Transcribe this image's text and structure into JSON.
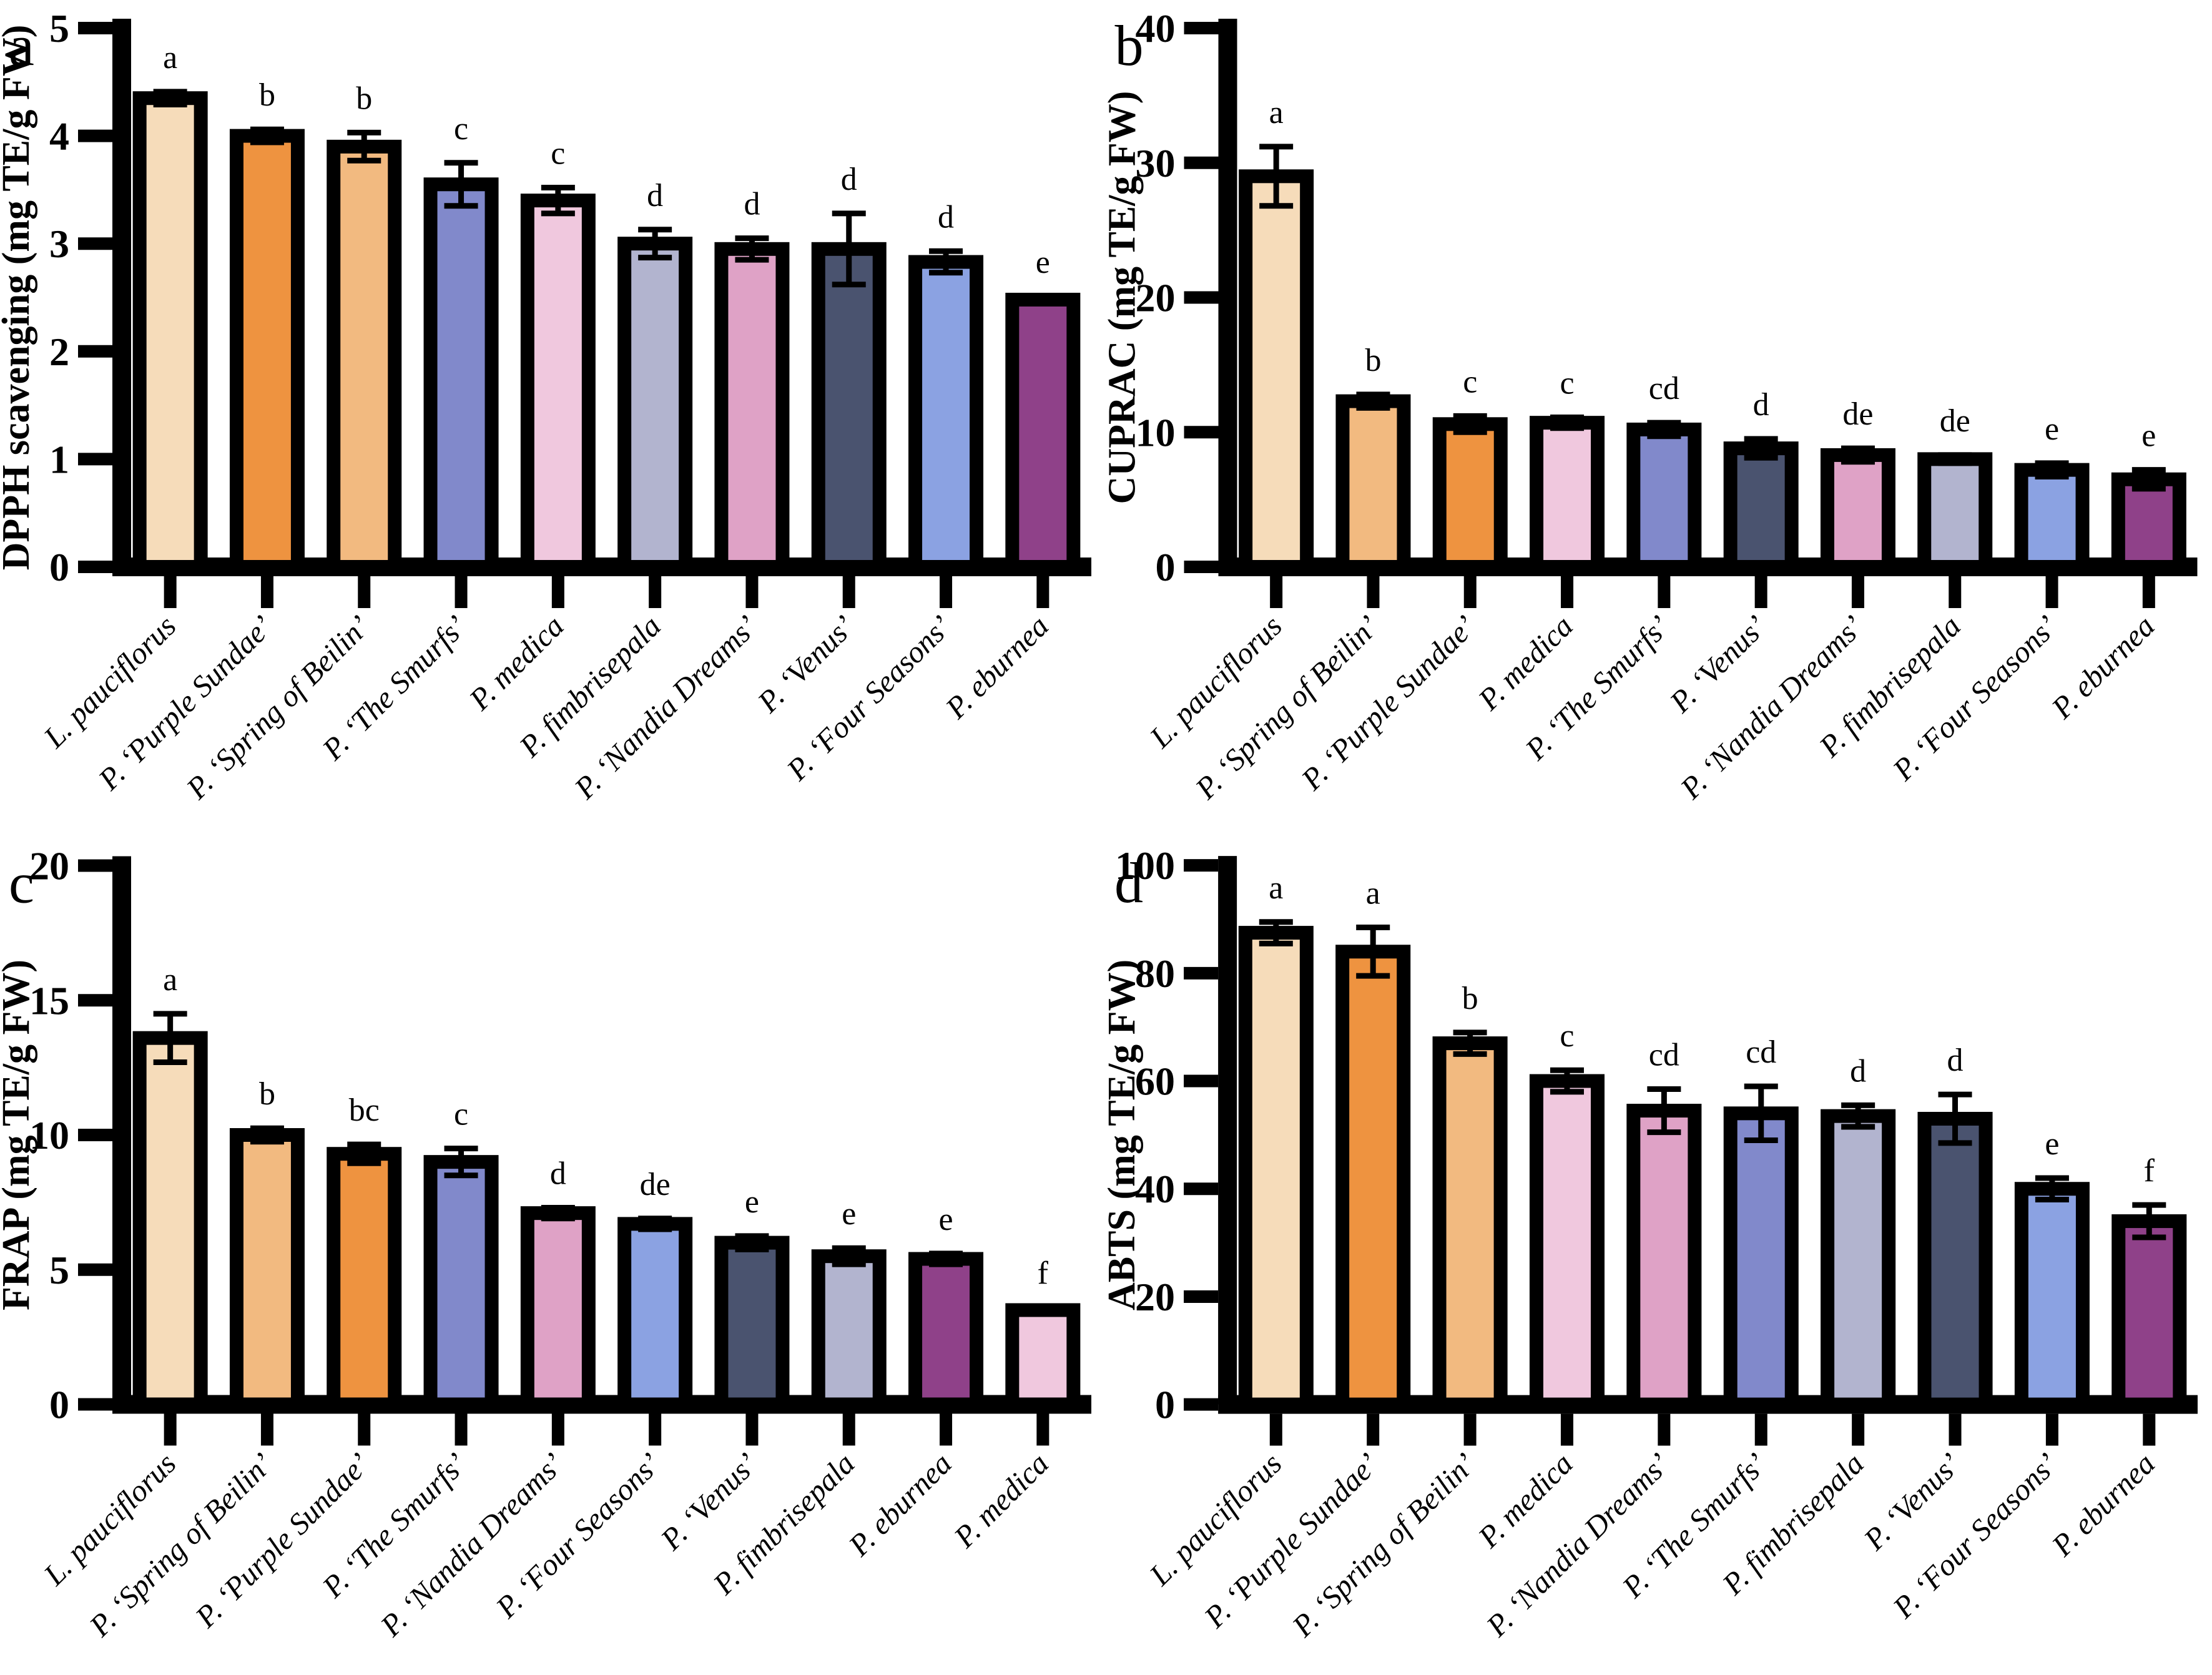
{
  "figure": {
    "background": "#FFFFFF",
    "text_color": "#000000",
    "axis_color": "#000000",
    "species_colors": {
      "L. pauciflorus": "#F6DCBA",
      "P. ‘Purple Sundae’": "#EE9340",
      "P. ‘Spring of Beilin’": "#F2BA80",
      "P. ‘The Smurfs’": "#8189CB",
      "P. medica": "#F0C8DE",
      "P. fimbrisepala": "#B2B4CF",
      "P. ‘Nandia Dreams’": "#DFA2C6",
      "P. ‘Venus’": "#4A536F",
      "P. ‘Four Seasons’": "#8BA2E2",
      "P. eburnea": "#8F4189"
    }
  },
  "chart_data": [
    {
      "type": "bar",
      "panel_letter": "a",
      "title": "",
      "xlabel": "",
      "ylabel": "DPPH scavenging (mg TE/g FW)",
      "ylim": [
        0,
        5
      ],
      "yticks": [
        0,
        1,
        2,
        3,
        4,
        5
      ],
      "grid": false,
      "legend": "none",
      "categories": [
        "L. pauciflorus",
        "P. ‘Purple Sundae’",
        "P. ‘Spring of Beilin’",
        "P. ‘The Smurfs’",
        "P. medica",
        "P. fimbrisepala",
        "P. ‘Nandia Dreams’",
        "P. ‘Venus’",
        "P. ‘Four Seasons’",
        "P. eburnea"
      ],
      "values": [
        4.35,
        4.0,
        3.9,
        3.55,
        3.4,
        3.0,
        2.95,
        2.95,
        2.83,
        2.48
      ],
      "errors": [
        0.06,
        0.06,
        0.13,
        0.2,
        0.12,
        0.13,
        0.1,
        0.33,
        0.1,
        0.03
      ],
      "sig_letters": [
        "a",
        "b",
        "b",
        "c",
        "c",
        "d",
        "d",
        "d",
        "d",
        "e"
      ]
    },
    {
      "type": "bar",
      "panel_letter": "b",
      "title": "",
      "xlabel": "",
      "ylabel": "CUPRAC (mg TE/g FW)",
      "ylim": [
        0,
        40
      ],
      "yticks": [
        0,
        10,
        20,
        30,
        40
      ],
      "grid": false,
      "legend": "none",
      "categories": [
        "L. pauciflorus",
        "P. ‘Spring of Beilin’",
        "P. ‘Purple Sundae’",
        "P. medica",
        "P. ‘The Smurfs’",
        "P. ‘Venus’",
        "P. ‘Nandia Dreams’",
        "P. fimbrisepala",
        "P. ‘Four Seasons’",
        "P. eburnea"
      ],
      "values": [
        29.0,
        12.3,
        10.6,
        10.7,
        10.2,
        8.8,
        8.3,
        8.0,
        7.2,
        6.5
      ],
      "errors": [
        2.2,
        0.5,
        0.6,
        0.4,
        0.5,
        0.7,
        0.5,
        0.3,
        0.5,
        0.7
      ],
      "sig_letters": [
        "a",
        "b",
        "c",
        "c",
        "cd",
        "d",
        "de",
        "de",
        "e",
        "e"
      ]
    },
    {
      "type": "bar",
      "panel_letter": "c",
      "title": "",
      "xlabel": "",
      "ylabel": "FRAP (mg TE/g FW)",
      "ylim": [
        0,
        20
      ],
      "yticks": [
        0,
        5,
        10,
        15,
        20
      ],
      "grid": false,
      "legend": "none",
      "categories": [
        "L. pauciflorus",
        "P. ‘Spring of Beilin’",
        "P. ‘Purple Sundae’",
        "P. ‘The Smurfs’",
        "P. ‘Nandia Dreams’",
        "P. ‘Four Seasons’",
        "P. ‘Venus’",
        "P. fimbrisepala",
        "P. eburnea",
        "P. medica"
      ],
      "values": [
        13.6,
        10.0,
        9.3,
        9.0,
        7.1,
        6.7,
        6.0,
        5.5,
        5.4,
        3.5
      ],
      "errors": [
        0.9,
        0.25,
        0.35,
        0.5,
        0.2,
        0.2,
        0.25,
        0.3,
        0.2,
        0.1
      ],
      "sig_letters": [
        "a",
        "b",
        "bc",
        "c",
        "d",
        "de",
        "e",
        "e",
        "e",
        "f"
      ]
    },
    {
      "type": "bar",
      "panel_letter": "d",
      "title": "",
      "xlabel": "",
      "ylabel": "ABTS (mg TE/g FW)",
      "ylim": [
        0,
        100
      ],
      "yticks": [
        0,
        20,
        40,
        60,
        80,
        100
      ],
      "grid": false,
      "legend": "none",
      "categories": [
        "L. pauciflorus",
        "P. ‘Purple Sundae’",
        "P. ‘Spring of Beilin’",
        "P. medica",
        "P. ‘Nandia Dreams’",
        "P. ‘The Smurfs’",
        "P. fimbrisepala",
        "P. ‘Venus’",
        "P. ‘Four Seasons’",
        "P. eburnea"
      ],
      "values": [
        87.5,
        84.0,
        67.0,
        60.0,
        54.5,
        54.0,
        53.5,
        53.0,
        40.0,
        34.0
      ],
      "errors": [
        2.0,
        4.5,
        2.0,
        2.0,
        4.0,
        5.0,
        2.0,
        4.5,
        2.0,
        3.0
      ],
      "sig_letters": [
        "a",
        "a",
        "b",
        "c",
        "cd",
        "cd",
        "d",
        "d",
        "e",
        "f"
      ]
    }
  ]
}
